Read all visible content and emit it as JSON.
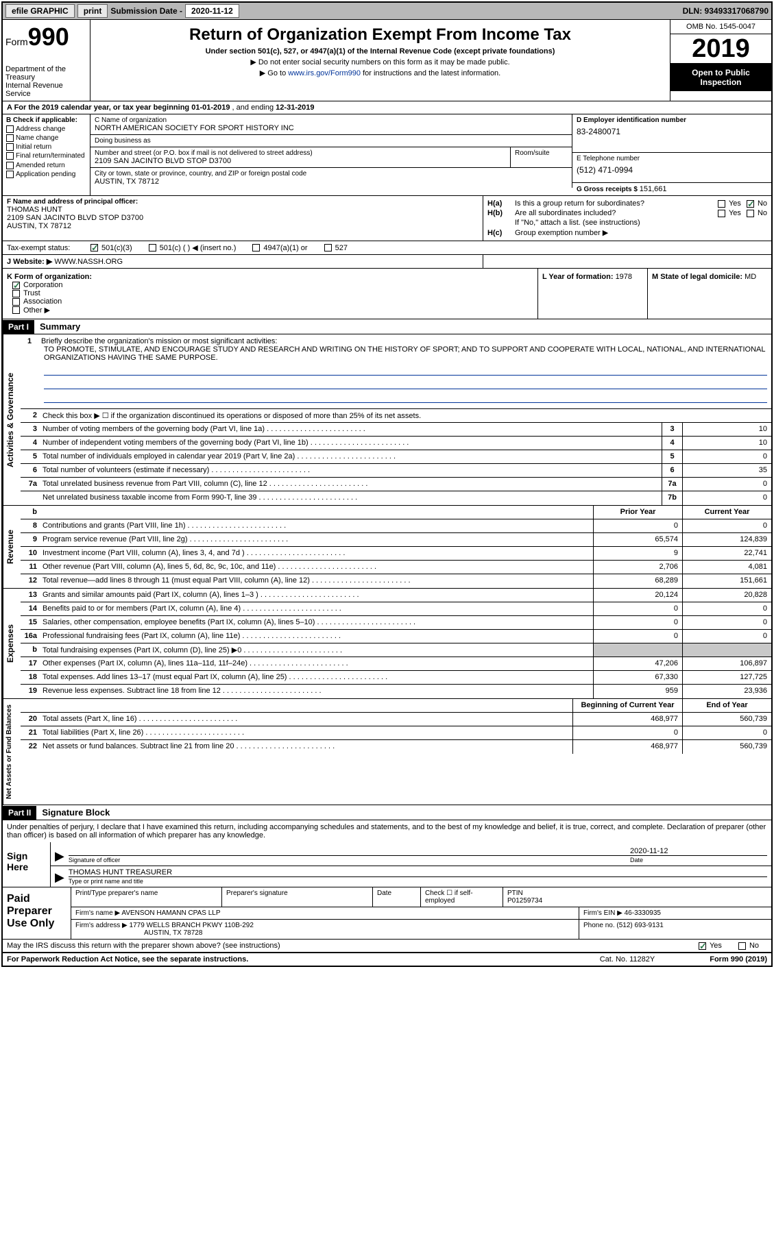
{
  "topbar": {
    "efile": "efile GRAPHIC",
    "print": "print",
    "sub_label": "Submission Date - ",
    "sub_date": "2020-11-12",
    "dln": "DLN: 93493317068790"
  },
  "header": {
    "form_word": "Form",
    "form_num": "990",
    "dept": "Department of the Treasury\nInternal Revenue Service",
    "title": "Return of Organization Exempt From Income Tax",
    "subtitle": "Under section 501(c), 527, or 4947(a)(1) of the Internal Revenue Code (except private foundations)",
    "inst1": "▶ Do not enter social security numbers on this form as it may be made public.",
    "inst2_pre": "▶ Go to ",
    "inst2_link": "www.irs.gov/Form990",
    "inst2_post": " for instructions and the latest information.",
    "omb": "OMB No. 1545-0047",
    "year": "2019",
    "inspect": "Open to Public Inspection"
  },
  "period": {
    "text_pre": "A For the 2019 calendar year, or tax year beginning ",
    "begin": "01-01-2019",
    "mid": " , and ending ",
    "end": "12-31-2019"
  },
  "colB": {
    "hdr": "B Check if applicable:",
    "items": [
      "Address change",
      "Name change",
      "Initial return",
      "Final return/terminated",
      "Amended return",
      "Application pending"
    ]
  },
  "colC": {
    "name_lbl": "C Name of organization",
    "name": "NORTH AMERICAN SOCIETY FOR SPORT HISTORY INC",
    "dba_lbl": "Doing business as",
    "addr_lbl": "Number and street (or P.O. box if mail is not delivered to street address)",
    "room_lbl": "Room/suite",
    "addr": "2109 SAN JACINTO BLVD STOP D3700",
    "city_lbl": "City or town, state or province, country, and ZIP or foreign postal code",
    "city": "AUSTIN, TX  78712"
  },
  "colD": {
    "ein_lbl": "D Employer identification number",
    "ein": "83-2480071",
    "phone_lbl": "E Telephone number",
    "phone": "(512) 471-0994",
    "receipts_lbl": "G Gross receipts $ ",
    "receipts": "151,661"
  },
  "colF": {
    "lbl": "F  Name and address of principal officer:",
    "name": "THOMAS HUNT",
    "addr1": "2109 SAN JACINTO BLVD STOP D3700",
    "addr2": "AUSTIN, TX  78712"
  },
  "colH": {
    "ha_lbl": "H(a)",
    "ha_txt": "Is this a group return for subordinates?",
    "hb_lbl": "H(b)",
    "hb_txt": "Are all subordinates included?",
    "hb_note": "If \"No,\" attach a list. (see instructions)",
    "hc_lbl": "H(c)",
    "hc_txt": "Group exemption number ▶",
    "yes": "Yes",
    "no": "No"
  },
  "taxRow": {
    "lbl": "Tax-exempt status:",
    "opts": [
      "501(c)(3)",
      "501(c) (  ) ◀ (insert no.)",
      "4947(a)(1) or",
      "527"
    ]
  },
  "webRow": {
    "lbl": "J   Website: ▶",
    "val": "WWW.NASSH.ORG"
  },
  "kRow": {
    "left_lbl": "K Form of organization:",
    "opts": [
      "Corporation",
      "Trust",
      "Association",
      "Other ▶"
    ],
    "mid_lbl": "L Year of formation: ",
    "mid_val": "1978",
    "right_lbl": "M State of legal domicile: ",
    "right_val": "MD"
  },
  "part1": {
    "hdr": "Part I",
    "title": "Summary",
    "line1_lbl": "1",
    "line1_txt": "Briefly describe the organization's mission or most significant activities:",
    "mission": "TO PROMOTE, STIMULATE, AND ENCOURAGE STUDY AND RESEARCH AND WRITING ON THE HISTORY OF SPORT; AND TO SUPPORT AND COOPERATE WITH LOCAL, NATIONAL, AND INTERNATIONAL ORGANIZATIONS HAVING THE SAME PURPOSE.",
    "line2_txt": "Check this box ▶ ☐  if the organization discontinued its operations or disposed of more than 25% of its net assets."
  },
  "govLabel": "Activities & Governance",
  "revLabel": "Revenue",
  "expLabel": "Expenses",
  "netLabel": "Net Assets or Fund Balances",
  "govLines": [
    {
      "n": "3",
      "t": "Number of voting members of the governing body (Part VI, line 1a)",
      "b": "3",
      "v": "10"
    },
    {
      "n": "4",
      "t": "Number of independent voting members of the governing body (Part VI, line 1b)",
      "b": "4",
      "v": "10"
    },
    {
      "n": "5",
      "t": "Total number of individuals employed in calendar year 2019 (Part V, line 2a)",
      "b": "5",
      "v": "0"
    },
    {
      "n": "6",
      "t": "Total number of volunteers (estimate if necessary)",
      "b": "6",
      "v": "35"
    },
    {
      "n": "7a",
      "t": "Total unrelated business revenue from Part VIII, column (C), line 12",
      "b": "7a",
      "v": "0"
    },
    {
      "n": "",
      "t": "Net unrelated business taxable income from Form 990-T, line 39",
      "b": "7b",
      "v": "0"
    }
  ],
  "colHdrs": {
    "prior": "Prior Year",
    "current": "Current Year"
  },
  "revLines": [
    {
      "n": "8",
      "t": "Contributions and grants (Part VIII, line 1h)",
      "p": "0",
      "c": "0"
    },
    {
      "n": "9",
      "t": "Program service revenue (Part VIII, line 2g)",
      "p": "65,574",
      "c": "124,839"
    },
    {
      "n": "10",
      "t": "Investment income (Part VIII, column (A), lines 3, 4, and 7d )",
      "p": "9",
      "c": "22,741"
    },
    {
      "n": "11",
      "t": "Other revenue (Part VIII, column (A), lines 5, 6d, 8c, 9c, 10c, and 11e)",
      "p": "2,706",
      "c": "4,081"
    },
    {
      "n": "12",
      "t": "Total revenue—add lines 8 through 11 (must equal Part VIII, column (A), line 12)",
      "p": "68,289",
      "c": "151,661"
    }
  ],
  "expLines": [
    {
      "n": "13",
      "t": "Grants and similar amounts paid (Part IX, column (A), lines 1–3 )",
      "p": "20,124",
      "c": "20,828"
    },
    {
      "n": "14",
      "t": "Benefits paid to or for members (Part IX, column (A), line 4)",
      "p": "0",
      "c": "0"
    },
    {
      "n": "15",
      "t": "Salaries, other compensation, employee benefits (Part IX, column (A), lines 5–10)",
      "p": "0",
      "c": "0"
    },
    {
      "n": "16a",
      "t": "Professional fundraising fees (Part IX, column (A), line 11e)",
      "p": "0",
      "c": "0"
    },
    {
      "n": "b",
      "t": "Total fundraising expenses (Part IX, column (D), line 25) ▶0",
      "p": "",
      "c": "",
      "shade": true
    },
    {
      "n": "17",
      "t": "Other expenses (Part IX, column (A), lines 11a–11d, 11f–24e)",
      "p": "47,206",
      "c": "106,897"
    },
    {
      "n": "18",
      "t": "Total expenses. Add lines 13–17 (must equal Part IX, column (A), line 25)",
      "p": "67,330",
      "c": "127,725"
    },
    {
      "n": "19",
      "t": "Revenue less expenses. Subtract line 18 from line 12",
      "p": "959",
      "c": "23,936"
    }
  ],
  "netHdrs": {
    "begin": "Beginning of Current Year",
    "end": "End of Year"
  },
  "netLines": [
    {
      "n": "20",
      "t": "Total assets (Part X, line 16)",
      "p": "468,977",
      "c": "560,739"
    },
    {
      "n": "21",
      "t": "Total liabilities (Part X, line 26)",
      "p": "0",
      "c": "0"
    },
    {
      "n": "22",
      "t": "Net assets or fund balances. Subtract line 21 from line 20",
      "p": "468,977",
      "c": "560,739"
    }
  ],
  "part2": {
    "hdr": "Part II",
    "title": "Signature Block",
    "declare": "Under penalties of perjury, I declare that I have examined this return, including accompanying schedules and statements, and to the best of my knowledge and belief, it is true, correct, and complete. Declaration of preparer (other than officer) is based on all information of which preparer has any knowledge."
  },
  "sign": {
    "left": "Sign Here",
    "sig_lbl": "Signature of officer",
    "date_lbl": "Date",
    "date_val": "2020-11-12",
    "name": "THOMAS HUNT  TREASURER",
    "name_lbl": "Type or print name and title"
  },
  "prep": {
    "left": "Paid Preparer Use Only",
    "r1c1": "Print/Type preparer's name",
    "r1c2": "Preparer's signature",
    "r1c3": "Date",
    "r1c4_lbl": "Check ☐ if self-employed",
    "r1c5_lbl": "PTIN",
    "r1c5_val": "P01259734",
    "r2_lbl": "Firm's name    ▶",
    "r2_val": "AVENSON HAMANN CPAS LLP",
    "r2_ein_lbl": "Firm's EIN ▶",
    "r2_ein_val": "46-3330935",
    "r3_lbl": "Firm's address ▶",
    "r3_val1": "1779 WELLS BRANCH PKWY 110B-292",
    "r3_val2": "AUSTIN, TX  78728",
    "r3_ph_lbl": "Phone no. ",
    "r3_ph_val": "(512) 693-9131"
  },
  "footer": {
    "discuss": "May the IRS discuss this return with the preparer shown above? (see instructions)",
    "paperwork": "For Paperwork Reduction Act Notice, see the separate instructions.",
    "cat": "Cat. No. 11282Y",
    "form": "Form 990 (2019)"
  }
}
